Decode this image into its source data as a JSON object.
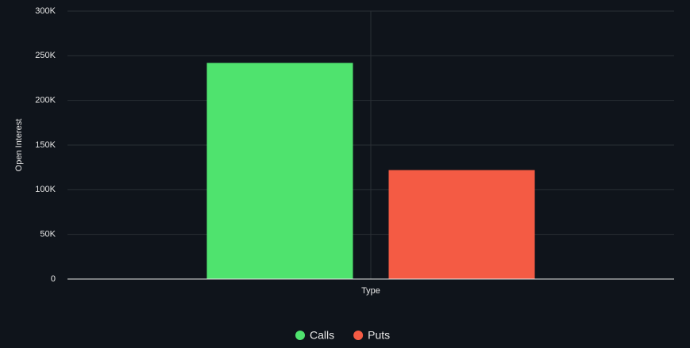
{
  "chart_data": {
    "type": "bar",
    "y_label": "Open Interest",
    "categories": [
      "Type"
    ],
    "series": [
      {
        "name": "Calls",
        "color": "#4fe36e",
        "values": [
          242000
        ]
      },
      {
        "name": "Puts",
        "color": "#f45b44",
        "values": [
          122000
        ]
      }
    ],
    "ylim": [
      0,
      300000
    ],
    "yticks": [
      0,
      {
        "value": 50000,
        "label": "50K"
      },
      {
        "value": 100000,
        "label": "100K"
      },
      {
        "value": 150000,
        "label": "150K"
      },
      {
        "value": 200000,
        "label": "200K"
      },
      {
        "value": 250000,
        "label": "250K"
      },
      {
        "value": 300000,
        "label": "300K"
      }
    ],
    "grid": true
  }
}
